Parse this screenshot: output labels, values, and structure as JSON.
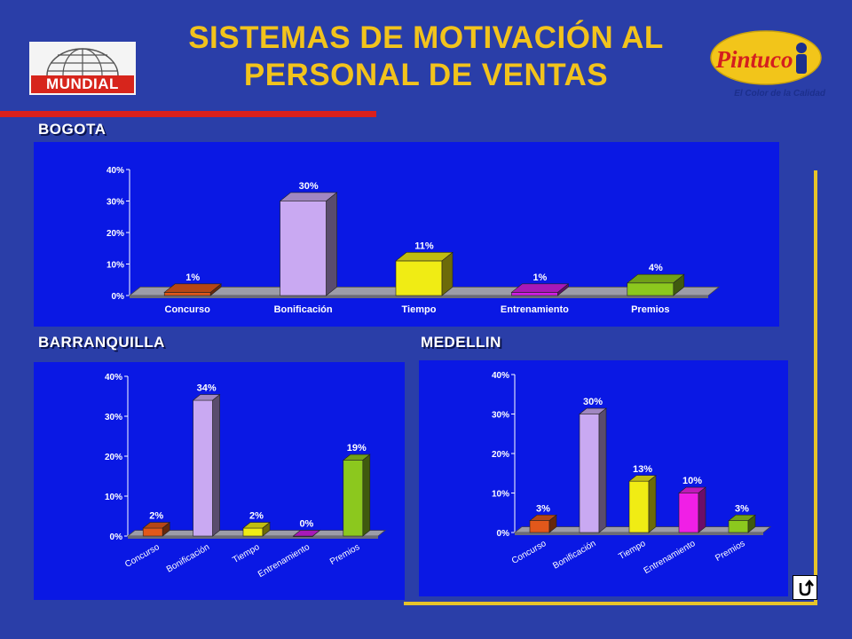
{
  "title_line1": "SISTEMAS DE MOTIVACIÓN AL",
  "title_line2": "PERSONAL DE VENTAS",
  "logo_left_text": "MUNDIAL",
  "logo_right_text": "Pintuco",
  "logo_right_tagline": "El Color de la Calidad",
  "colors": {
    "background": "#2a3ea8",
    "panel": "#0a18e4",
    "title": "#f2c31c",
    "accent_red": "#d9201c",
    "accent_gold": "#e6c32a"
  },
  "chart_data": [
    {
      "type": "bar",
      "title": "BOGOTA",
      "categories": [
        "Concurso",
        "Bonificación",
        "Tiempo",
        "Entrenamiento",
        "Premios"
      ],
      "values": [
        1,
        30,
        11,
        1,
        4
      ],
      "value_labels": [
        "1%",
        "30%",
        "11%",
        "1%",
        "4%"
      ],
      "ylim": [
        0,
        40
      ],
      "yticks": [
        "0%",
        "10%",
        "20%",
        "30%",
        "40%"
      ],
      "category_label_rotation": "none",
      "colors": [
        "#e2581b",
        "#c9a9f2",
        "#f0ec14",
        "#d11fe6",
        "#8cc81e"
      ]
    },
    {
      "type": "bar",
      "title": "BARRANQUILLA",
      "categories": [
        "Concurso",
        "Bonificación",
        "Tiempo",
        "Entrenamiento",
        "Premios"
      ],
      "values": [
        2,
        34,
        2,
        0,
        19
      ],
      "value_labels": [
        "2%",
        "34%",
        "2%",
        "0%",
        "19%"
      ],
      "ylim": [
        0,
        40
      ],
      "yticks": [
        "0%",
        "10%",
        "20%",
        "30%",
        "40%"
      ],
      "category_label_rotation": "rotated",
      "colors": [
        "#e2581b",
        "#c9a9f2",
        "#f0ec14",
        "#d11fe6",
        "#8cc81e"
      ]
    },
    {
      "type": "bar",
      "title": "MEDELLIN",
      "categories": [
        "Concurso",
        "Bonificación",
        "Tiempo",
        "Entrenamiento",
        "Premios"
      ],
      "values": [
        3,
        30,
        13,
        10,
        3
      ],
      "value_labels": [
        "3%",
        "30%",
        "13%",
        "10%",
        "3%"
      ],
      "ylim": [
        0,
        40
      ],
      "yticks": [
        "0%",
        "10%",
        "20%",
        "30%",
        "40%"
      ],
      "category_label_rotation": "rotated",
      "colors": [
        "#e2581b",
        "#c9a9f2",
        "#f0ec14",
        "#f01fe6",
        "#8cc81e"
      ]
    }
  ]
}
